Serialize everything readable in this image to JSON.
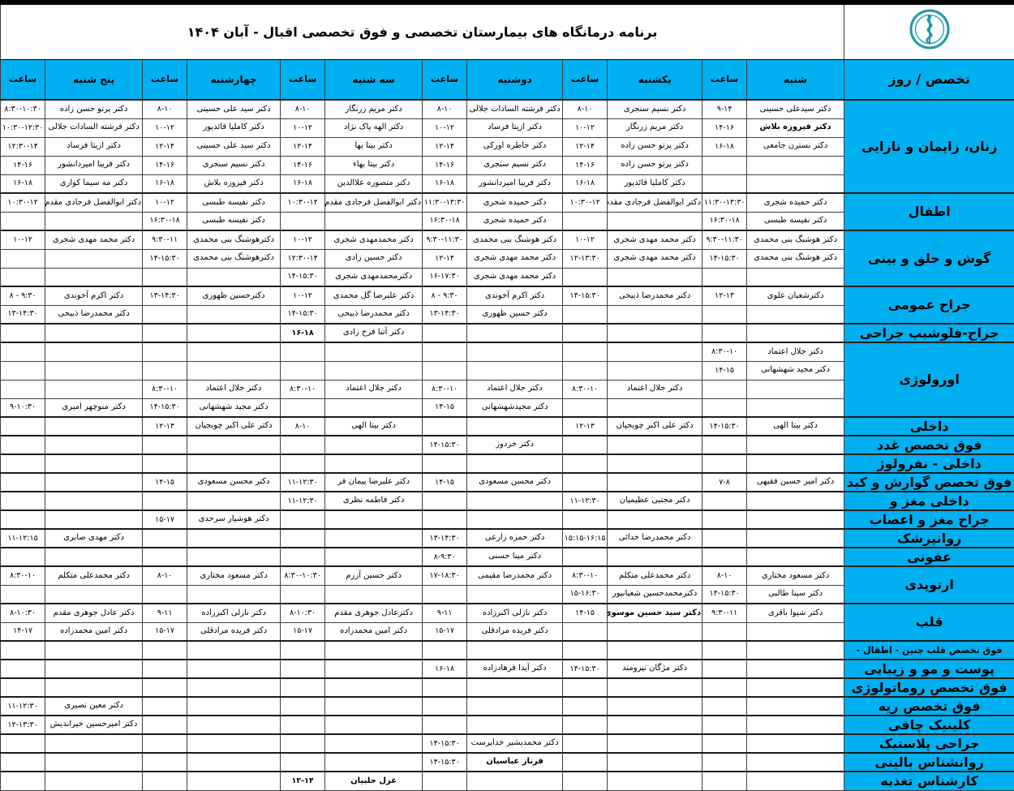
{
  "title": "برنامه درمانگاه های بیمارستان تخصصی و فوق تخصصی اقبال - آبان ۱۴۰۴",
  "logo": {
    "label": "hospital-logo",
    "color": "#1b9aaa"
  },
  "colors": {
    "header_bg": "#00b0f0",
    "grid": "#3f3f3f",
    "logo_teal": "#1b9aaa"
  },
  "header": {
    "specialty_day": "تخصص / روز",
    "time_label": "ساعت",
    "days": [
      "شنبه",
      "یکشنبه",
      "دوشنبه",
      "سه شنبه",
      "چهارشنبه",
      "پنج شنبه"
    ]
  },
  "groups": [
    {
      "name": "زنان، زایمان و نازایی",
      "rows": [
        {
          "sat": {
            "d": "دکتر سیدعلی حسینی",
            "t": "۹-۱۴"
          },
          "sun": {
            "d": "دکتر نسیم سنجری",
            "t": "۸-۱۰"
          },
          "mon": {
            "d": "دکتر فرشته السادات جلالی",
            "t": "۸-۱۰"
          },
          "tue": {
            "d": "دکتر مریم زرنگار",
            "t": "۸-۱۰"
          },
          "wed": {
            "d": "دکتر سید علی حسینی",
            "t": "۸-۱۰"
          },
          "thu": {
            "d": "دکتر پرتو حسن زاده",
            "t": "۸:۳۰-۱۰:۳۰"
          }
        },
        {
          "sat": {
            "d": "دکتر فیروزه بلاش",
            "t": "۱۴-۱۶",
            "b": true
          },
          "sun": {
            "d": "دکتر مریم زرنگار",
            "t": "۱۰-۱۲"
          },
          "mon": {
            "d": "دکتر ازیتا فرساد",
            "t": "۱۰-۱۲"
          },
          "tue": {
            "d": "دکتر الهه پاک نژاد",
            "t": "۱۰-۱۲"
          },
          "wed": {
            "d": "دکتر کاملیا قائدپور",
            "t": "۱۰-۱۲"
          },
          "thu": {
            "d": "دکتر فرشته السادات جلالی",
            "t": "۱۰:۳۰-۱۲:۳۰"
          }
        },
        {
          "sat": {
            "d": "دکتر نسترن جامعی",
            "t": "۱۶-۱۸"
          },
          "sun": {
            "d": "دکتر پرتو حسن زاده",
            "t": "۱۲-۱۴"
          },
          "mon": {
            "d": "دکتر خاطره اورکی",
            "t": "۱۲-۱۴"
          },
          "tue": {
            "d": "دکتر بیتا بها",
            "t": "۱۲-۱۴"
          },
          "wed": {
            "d": "دکتر سید علی حسینی",
            "t": "۱۲-۱۴"
          },
          "thu": {
            "d": "دکتر ازیتا فرساد",
            "t": "۱۲:۳۰-۱۴"
          }
        },
        {
          "sun": {
            "d": "دکتر پرتو حسن زاده",
            "t": "۱۴-۱۶"
          },
          "mon": {
            "d": "دکتر نسیم سنجری",
            "t": "۱۴-۱۶"
          },
          "tue": {
            "d": "دکتر بیتا بهاء",
            "t": "۱۴-۱۶"
          },
          "wed": {
            "d": "دکتر نسیم سنجری",
            "t": "۱۴-۱۶"
          },
          "thu": {
            "d": "دکتر فریبا امیردانشور",
            "t": "۱۴-۱۶"
          }
        },
        {
          "sun": {
            "d": "دکتر کاملیا قائدپور",
            "t": "۱۶-۱۸"
          },
          "mon": {
            "d": "دکتر فریبا امیردانشور",
            "t": "۱۶-۱۸"
          },
          "tue": {
            "d": "دکتر منصوره علاالدین",
            "t": "۱۶-۱۸"
          },
          "wed": {
            "d": "دکتر فیروزه بلاش",
            "t": "۱۶-۱۸"
          },
          "thu": {
            "d": "دکتر مه سیما کواری",
            "t": "۱۶-۱۸"
          }
        }
      ]
    },
    {
      "name": "اطفال",
      "rows": [
        {
          "sat": {
            "d": "دکتر حمیده شجری",
            "t": "۱۱:۳۰-۱۳:۳۰"
          },
          "sun": {
            "d": "دکتر ابوالفضل فرجادی مقدم",
            "t": "۱۰:۳۰-۱۲"
          },
          "mon": {
            "d": "دکتر حمیده شجری",
            "t": "۱۱:۳۰-۱۳:۳۰"
          },
          "tue": {
            "d": "دکتر ابوالفضل فرجادی مقدم",
            "t": "۱۰:۳۰-۱۲"
          },
          "wed": {
            "d": "دکتر نفیسه طبسی",
            "t": "۱۰-۱۲"
          },
          "thu": {
            "d": "دکتر ابوالفضل فرجادی مقدم",
            "t": "۱۰:۳۰-۱۲"
          }
        },
        {
          "sat": {
            "d": "دکتر نفیسه طبسی",
            "t": "۱۶:۳۰-۱۸"
          },
          "mon": {
            "d": "دکتر حمیده شجری",
            "t": "۱۶:۳۰-۱۸"
          },
          "wed": {
            "d": "دکتر نفیسه طبسی",
            "t": "۱۶:۳۰-۱۸"
          }
        }
      ]
    },
    {
      "name": "گوش و حلق و بینی",
      "rows": [
        {
          "sat": {
            "d": "دکتر هوشنگ بنی محمدی",
            "t": "۹:۳۰-۱۱:۳۰"
          },
          "sun": {
            "d": "دکتر محمد مهدی شجری",
            "t": "۱۰-۱۲"
          },
          "mon": {
            "d": "دکتر هوشنگ بنی محمدی",
            "t": "۹:۳۰-۱۱:۳۰"
          },
          "tue": {
            "d": "دکتر محمدمهدی شجری",
            "t": "۱۰-۱۲"
          },
          "wed": {
            "d": "دکترهوشنگ بنی محمدی",
            "t": "۹:۳۰-۱۱"
          },
          "thu": {
            "d": "دکتر محمد مهدی شجری",
            "t": "۱۰-۱۲"
          }
        },
        {
          "sat": {
            "d": "دکتر هوشنگ بنی محمدی",
            "t": "۱۴-۱۵:۳۰"
          },
          "sun": {
            "d": "دکتر محمد مهدی شجری",
            "t": "۱۲-۱۳:۳۰"
          },
          "mon": {
            "d": "دکتر محمد مهدی شجری",
            "t": "۱۲-۱۴"
          },
          "tue": {
            "d": "دکتر حسین زادی",
            "t": "۱۲:۳۰-۱۴"
          },
          "wed": {
            "d": "دکترهوشنگ بنی محمدی",
            "t": "۱۴-۱۵:۳۰"
          }
        },
        {
          "mon": {
            "d": "دکتر محمد مهدی شجری",
            "t": "۱۶-۱۷:۳۰"
          },
          "tue": {
            "d": "دکترمحمدمهدی شجری",
            "t": "۱۴-۱۵:۳۰"
          }
        }
      ]
    },
    {
      "name": "جراح عمومی",
      "rows": [
        {
          "sat": {
            "d": "دکترشعبان علوی",
            "t": "۱۲-۱۳"
          },
          "sun": {
            "d": "دکتر محمدرضا ذبیحی",
            "t": "۱۴-۱۵:۳۰"
          },
          "mon": {
            "d": "دکتر اکرم آخوندی",
            "t": "۸ - ۹:۳۰"
          },
          "tue": {
            "d": "دکتر علیرضا گل محمدی",
            "t": "۱۰-۱۲"
          },
          "wed": {
            "d": "دکترحسین ظهوری",
            "t": "۱۳-۱۴:۳۰"
          },
          "thu": {
            "d": "دکتر اکرم آخوندی",
            "t": "۸ - ۹:۳۰"
          }
        },
        {
          "mon": {
            "d": "دکتر حسین ظهوری",
            "t": "۱۳-۱۴:۳۰"
          },
          "tue": {
            "d": "دکتر محمدرضا ذبیحی",
            "t": "۱۴-۱۵:۳۰"
          },
          "thu": {
            "d": "دکتر محمدرضا ذبیحی",
            "t": "۱۳-۱۴:۳۰"
          }
        }
      ]
    },
    {
      "name": "جراح-فلوشیپ جراحی",
      "rows": [
        {
          "tue": {
            "d": "دکتر آتنا فرح زادی",
            "t": "۱۶-۱۸",
            "tb": true
          }
        }
      ]
    },
    {
      "name": "اورولوژی",
      "rows": [
        {
          "sat": {
            "d": "دکتر جلال اعتماد",
            "t": "۸:۳۰-۱۰"
          }
        },
        {
          "sat": {
            "d": "دکتر مجید شهشهانی",
            "t": "۱۴-۱۵"
          }
        },
        {
          "sun": {
            "d": "دکتر جلال اعتماد",
            "t": "۸:۳۰-۱۰"
          },
          "mon": {
            "d": "دکتر جلال اعتماد",
            "t": "۸:۳۰-۱۰"
          },
          "tue": {
            "d": "دکتر جلال اعتماد",
            "t": "۸:۳۰-۱۰"
          },
          "wed": {
            "d": "دکتر جلال اعتماد",
            "t": "۸:۳۰-۱۰"
          }
        },
        {
          "mon": {
            "d": "دکتر مجیدشهشهانی",
            "t": "۱۴-۱۵"
          },
          "wed": {
            "d": "دکتر مجید شهشهانی",
            "t": "۱۴-۱۵:۳۰"
          },
          "thu": {
            "d": "دکتر منوچهر امیری",
            "t": "۹-۱۰:۳۰"
          }
        }
      ]
    },
    {
      "name": "داخلی",
      "rows": [
        {
          "sat": {
            "d": "دکتر بیتا الهی",
            "t": "۱۴-۱۵:۳۰"
          },
          "sun": {
            "d": "دکتر علی اکبر چوبجیان",
            "t": "۱۲-۱۳"
          },
          "tue": {
            "d": "دکتر بیتا الهی",
            "t": "۸-۱۰"
          },
          "wed": {
            "d": "دکتر علی اکبر چوبجیان",
            "t": "۱۲-۱۳"
          }
        }
      ]
    },
    {
      "name": "فوق تخصص غدد",
      "rows": [
        {
          "mon": {
            "d": "دکتر خزدوز",
            "t": "۱۴-۱۵:۳۰"
          }
        }
      ]
    },
    {
      "name": "داخلی - نفرولوژ",
      "rows": [
        {}
      ]
    },
    {
      "name": "فوق تخصص گوارش و کبد",
      "rows": [
        {
          "sat": {
            "d": "دکتر امیر حسین فقیهی",
            "t": "۷-۸"
          },
          "mon": {
            "d": "دکتر محسن مسعودی",
            "t": "۱۴-۱۵"
          },
          "tue": {
            "d": "دکتر علیرضا پیمان فر",
            "t": "۱۱-۱۲:۳۰"
          },
          "wed": {
            "d": "دکتر محسن مسعودی",
            "t": "۱۴-۱۵"
          }
        }
      ]
    },
    {
      "name": "داخلی مغز و",
      "rows": [
        {
          "sun": {
            "d": "دکتر مجتبی عظیمیان",
            "t": "۱۱-۱۲:۳۰"
          },
          "tue": {
            "d": "دکتر فاطمه نظری",
            "t": "۱۱-۱۲:۳۰"
          }
        }
      ]
    },
    {
      "name": "جراح مغز و اعصاب",
      "rows": [
        {
          "wed": {
            "d": "دکتر هوشیار سرحدی",
            "t": "۱۵-۱۷"
          }
        }
      ]
    },
    {
      "name": "روانپزشک",
      "rows": [
        {
          "sun": {
            "d": "دکتر محمدرضا خدائی",
            "t": "۱۵:۱۵-۱۶:۱۵"
          },
          "mon": {
            "d": "دکتر حمزه زارعی",
            "t": "۱۳-۱۴:۳۰"
          },
          "thu": {
            "d": "دکتر مهدی صابری",
            "t": "۱۱-۱۲:۱۵"
          }
        }
      ]
    },
    {
      "name": "عفونی",
      "rows": [
        {
          "mon": {
            "d": "دکتر مینا حسنی",
            "t": "۸-۹:۳۰"
          }
        }
      ]
    },
    {
      "name": "ارتوپدی",
      "rows": [
        {
          "sat": {
            "d": "دکتر مسعود مختاری",
            "t": "۸-۱۰"
          },
          "sun": {
            "d": "دکتر محمدعلی متکلم",
            "t": "۸:۳۰-۱۰"
          },
          "mon": {
            "d": "دکتر محمدرضا مقیمی",
            "t": "۱۷-۱۸:۳۰"
          },
          "tue": {
            "d": "دکتر حسین آزرم",
            "t": "۸:۳۰-۱۰:۳۰"
          },
          "wed": {
            "d": "دکتر مسعود مختاری",
            "t": "۸-۱۰"
          },
          "thu": {
            "d": "دکتر محمدعلی متکلم",
            "t": "۸:۳۰-۱۰"
          }
        },
        {
          "sat": {
            "d": "دکتر سینا طالبی",
            "t": "۱۴-۱۵:۳۰"
          },
          "sun": {
            "d": "دکترمحمدحسین شعبانپور",
            "t": "۱۵-۱۶:۳۰"
          }
        }
      ]
    },
    {
      "name": "قلب",
      "rows": [
        {
          "sat": {
            "d": "دکتر شیوا باقری",
            "t": "۹:۳۰-۱۱"
          },
          "sun": {
            "d": "دکتر سید حسین موسوي",
            "t": "۱۴-۱۵",
            "b": true
          },
          "mon": {
            "d": "دکتر نازلی اکبرزاده",
            "t": "۹-۱۱"
          },
          "tue": {
            "d": "دکترعادل جوهری مقدم",
            "t": "۸-۱۰:۳۰"
          },
          "wed": {
            "d": "دکتر نازلی اکبرزاده",
            "t": "۹-۱۱"
          },
          "thu": {
            "d": "دکتر عادل جوهری مقدم",
            "t": "۸-۱۰:۳۰"
          }
        },
        {
          "mon": {
            "d": "دکتر فریده مرادقلی",
            "t": "۱۵-۱۷"
          },
          "tue": {
            "d": "دکتر امین محمدزاده",
            "t": "۱۵-۱۷"
          },
          "wed": {
            "d": "دکتر فریده مرادقلی",
            "t": "۱۵-۱۷"
          },
          "thu": {
            "d": "دکتر امین محمدزاده",
            "t": "۱۴-۱۷"
          }
        }
      ]
    },
    {
      "name": "فوق تخصص قلب جنین - اطفال -",
      "small": true,
      "rows": [
        {}
      ]
    },
    {
      "name": "پوست و مو و زیبایی",
      "rows": [
        {
          "sun": {
            "d": "دکتر مژگان نیرومند",
            "t": "۱۴-۱۵:۳۰"
          },
          "mon": {
            "d": "دکتر آیدا فرهادزاده",
            "t": "۱۶-۱۸"
          }
        }
      ]
    },
    {
      "name": "فوق تخصص روماتولوژی",
      "rows": [
        {}
      ]
    },
    {
      "name": "فوق تخصص ریه",
      "rows": [
        {
          "thu": {
            "d": "دکتر معین نصیری",
            "t": "۱۱-۱۲:۳۰"
          }
        }
      ]
    },
    {
      "name": "کلینیک چاقی",
      "rows": [
        {
          "thu": {
            "d": "دکتر امیرحسین خیراندیش",
            "t": "۱۲-۱۳:۳۰"
          }
        }
      ]
    },
    {
      "name": "جراحی پلاستیک",
      "rows": [
        {
          "mon": {
            "d": "دکتر محمدبشیر خداپرست",
            "t": "۱۴-۱۵:۳۰"
          }
        }
      ]
    },
    {
      "name": "روانشناس بالینی",
      "rows": [
        {
          "mon": {
            "d": "فرناز عباسیان",
            "t": "۱۴-۱۵:۳۰",
            "b": true
          }
        }
      ]
    },
    {
      "name": "کارشناس تغذیه",
      "rows": [
        {
          "tue": {
            "d": "غزل حلبیان",
            "t": "۱۲-۱۴",
            "b": true,
            "tb": true
          }
        }
      ]
    }
  ]
}
